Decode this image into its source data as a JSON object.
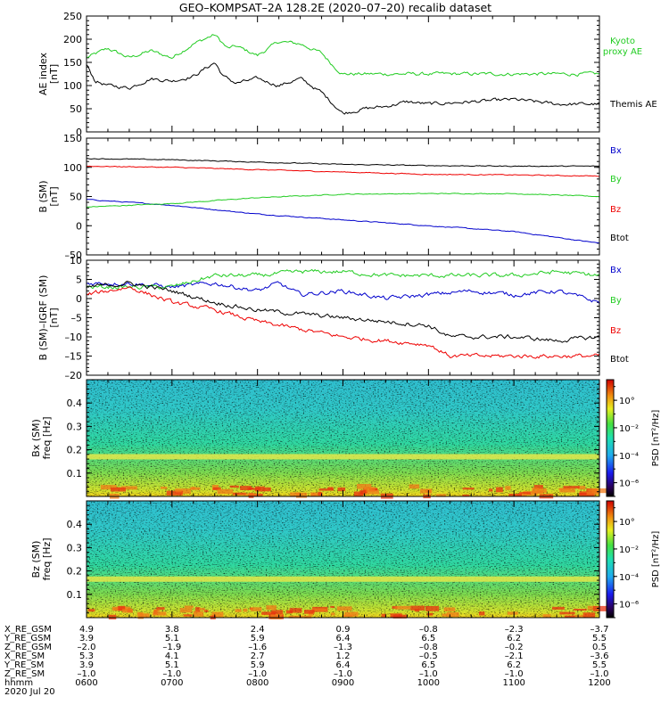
{
  "title": "GEO–KOMPSAT–2A 128.2E (2020–07–20) recalib dataset",
  "colors": {
    "black": "#000000",
    "red": "#ee0000",
    "green": "#22cc22",
    "blue": "#0000cc"
  },
  "chart_data": [
    {
      "type": "line",
      "panel": "ae",
      "ylabel": [
        "AE index",
        "[nT]"
      ],
      "ylim": [
        0,
        250
      ],
      "yticks": [
        0,
        50,
        100,
        150,
        200,
        250
      ],
      "series": [
        {
          "name": "Kyoto\nproxy AE",
          "color": "#22cc22",
          "x": [
            6.0,
            6.25,
            6.5,
            6.75,
            7.0,
            7.25,
            7.5,
            7.65,
            7.75,
            8.0,
            8.25,
            8.5,
            8.75,
            8.9,
            9.0,
            9.5,
            10.0,
            10.5,
            11.0,
            11.5,
            12.0
          ],
          "values": [
            160,
            180,
            160,
            175,
            160,
            190,
            210,
            180,
            185,
            165,
            195,
            190,
            170,
            140,
            125,
            125,
            125,
            125,
            125,
            125,
            125
          ]
        },
        {
          "name": "Themis AE",
          "color": "#000000",
          "x": [
            6.0,
            6.1,
            6.25,
            6.5,
            6.75,
            7.0,
            7.25,
            7.5,
            7.6,
            7.75,
            8.0,
            8.25,
            8.5,
            8.75,
            9.0,
            9.25,
            9.5,
            9.75,
            10.0,
            10.5,
            11.0,
            11.5,
            12.0
          ],
          "values": [
            145,
            110,
            100,
            95,
            115,
            110,
            120,
            150,
            120,
            105,
            115,
            100,
            115,
            85,
            40,
            50,
            55,
            65,
            60,
            65,
            70,
            60,
            60
          ]
        }
      ]
    },
    {
      "type": "line",
      "panel": "b",
      "ylabel": [
        "B (SM)",
        "[nT]"
      ],
      "ylim": [
        -50,
        150
      ],
      "yticks": [
        -50,
        0,
        50,
        100,
        150
      ],
      "series": [
        {
          "name": "Bx",
          "color": "#0000cc",
          "x": [
            6,
            7,
            8,
            9,
            10,
            11,
            12
          ],
          "values": [
            45,
            35,
            20,
            10,
            0,
            -10,
            -30
          ]
        },
        {
          "name": "By",
          "color": "#22cc22",
          "x": [
            6,
            7,
            8,
            9,
            10,
            11,
            12
          ],
          "values": [
            32,
            38,
            48,
            54,
            55,
            55,
            50
          ]
        },
        {
          "name": "Bz",
          "color": "#ee0000",
          "x": [
            6,
            7,
            8,
            9,
            10,
            11,
            12
          ],
          "values": [
            102,
            100,
            96,
            92,
            88,
            87,
            85
          ]
        },
        {
          "name": "Btot",
          "color": "#000000",
          "x": [
            6,
            7,
            8,
            9,
            10,
            11,
            12
          ],
          "values": [
            115,
            113,
            109,
            105,
            103,
            102,
            102
          ]
        }
      ]
    },
    {
      "type": "line",
      "panel": "dB",
      "ylabel": [
        "B (SM)–IGRF (SM)",
        "[nT]"
      ],
      "ylim": [
        -20,
        10
      ],
      "yticks": [
        -20,
        -15,
        -10,
        -5,
        0,
        5,
        10
      ],
      "series": [
        {
          "name": "Bx",
          "color": "#0000cc",
          "x": [
            6.0,
            6.5,
            7.0,
            7.5,
            8.0,
            8.25,
            8.5,
            9.0,
            9.5,
            10.0,
            10.5,
            11.0,
            11.5,
            12.0
          ],
          "values": [
            4,
            4,
            3,
            4,
            2,
            4,
            1,
            2,
            0,
            1,
            2,
            1,
            2,
            -1
          ]
        },
        {
          "name": "By",
          "color": "#22cc22",
          "x": [
            6.0,
            6.5,
            7.0,
            7.5,
            8.0,
            8.5,
            9.0,
            9.5,
            10.0,
            10.5,
            11.0,
            11.5,
            12.0
          ],
          "values": [
            3,
            3,
            3,
            6,
            6,
            7,
            7,
            6,
            6,
            6,
            6,
            7,
            6
          ]
        },
        {
          "name": "Bz",
          "color": "#ee0000",
          "x": [
            6.0,
            6.25,
            6.5,
            7.0,
            7.5,
            8.0,
            8.5,
            9.0,
            9.5,
            10.0,
            10.25,
            10.5,
            11.0,
            11.5,
            12.0
          ],
          "values": [
            1,
            2,
            3,
            -1,
            -3,
            -6,
            -8,
            -10,
            -11,
            -12,
            -15,
            -15,
            -15,
            -15,
            -15
          ]
        },
        {
          "name": "Btot",
          "color": "#000000",
          "x": [
            6.0,
            6.5,
            7.0,
            7.5,
            8.0,
            8.5,
            9.0,
            9.5,
            10.0,
            10.25,
            10.5,
            11.0,
            11.5,
            12.0
          ],
          "values": [
            3,
            4,
            2,
            -1,
            -3,
            -4,
            -5,
            -6,
            -7,
            -10,
            -10,
            -10,
            -11,
            -10
          ]
        }
      ]
    },
    {
      "type": "heatmap",
      "panel": "spec-bx",
      "ylabel": [
        "Bx (SM)",
        "freq [Hz]"
      ],
      "ylim": [
        0,
        0.5
      ],
      "yticks": [
        0.1,
        0.2,
        0.3,
        0.4
      ],
      "colorbar": {
        "label": "PSD [nT²/Hz]",
        "ticks": [
          "10°",
          "10⁻²",
          "10⁻⁴",
          "10⁻⁶"
        ],
        "log_range": [
          -7,
          1.5
        ]
      },
      "spectral_line_hz": 0.17
    },
    {
      "type": "heatmap",
      "panel": "spec-bz",
      "ylabel": [
        "Bz (SM)",
        "freq [Hz]"
      ],
      "ylim": [
        0,
        0.5
      ],
      "yticks": [
        0.1,
        0.2,
        0.3,
        0.4
      ],
      "colorbar": {
        "label": "PSD [nT²/Hz]",
        "ticks": [
          "10°",
          "10⁻²",
          "10⁻⁴",
          "10⁻⁶"
        ],
        "log_range": [
          -7,
          1.5
        ]
      },
      "spectral_line_hz": 0.165
    }
  ],
  "xaxis": {
    "rows": [
      {
        "label": "X_RE_GSM",
        "values": [
          "4.9",
          "3.8",
          "2.4",
          "0.9",
          "–0.8",
          "–2.3",
          "–3.7"
        ]
      },
      {
        "label": "Y_RE_GSM",
        "values": [
          "3.9",
          "5.1",
          "5.9",
          "6.4",
          "6.5",
          "6.2",
          "5.5"
        ]
      },
      {
        "label": "Z_RE_GSM",
        "values": [
          "–2.0",
          "–1.9",
          "–1.6",
          "–1.3",
          "–0.8",
          "–0.2",
          "0.5"
        ]
      },
      {
        "label": "X_RE_SM",
        "values": [
          "5.3",
          "4.1",
          "2.7",
          "1.2",
          "–0.5",
          "–2.1",
          "–3.6"
        ]
      },
      {
        "label": "Y_RE_SM",
        "values": [
          "3.9",
          "5.1",
          "5.9",
          "6.4",
          "6.5",
          "6.2",
          "5.5"
        ]
      },
      {
        "label": "Z_RE_SM",
        "values": [
          "–1.0",
          "–1.0",
          "–1.0",
          "–1.0",
          "–1.0",
          "–1.0",
          "–1.0"
        ]
      },
      {
        "label": "hhmm",
        "values": [
          "0600",
          "0700",
          "0800",
          "0900",
          "1000",
          "1100",
          "1200"
        ]
      }
    ],
    "date_label": "2020 Jul 20",
    "range": [
      6,
      12
    ]
  }
}
